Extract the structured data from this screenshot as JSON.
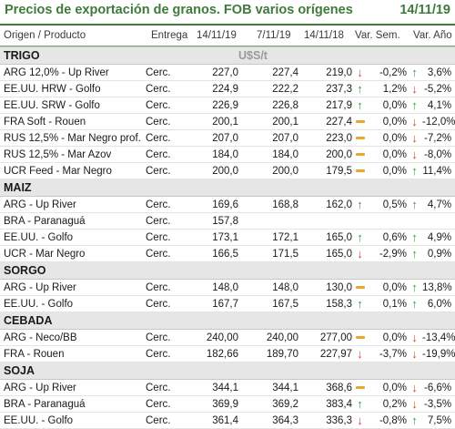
{
  "header": {
    "title": "Precios de exportación de granos. FOB varios orígenes",
    "date": "14/11/19"
  },
  "columns": {
    "origin": "Origen / Producto",
    "delivery": "Entrega",
    "d1": "14/11/19",
    "d2": "7/11/19",
    "d3": "14/11/18",
    "week": "Var. Sem.",
    "year": "Var. Año"
  },
  "unit": "U$S/t",
  "colors": {
    "accent": "#3f7a3c",
    "up": "#3aa035",
    "down": "#e0412f",
    "flat": "#f0a531"
  },
  "sections": [
    {
      "name": "TRIGO",
      "rows": [
        {
          "origin": "ARG 12,0% - Up River",
          "delivery": "Cerc.",
          "d1": "227,0",
          "d2": "227,4",
          "d3": "219,0",
          "ind1": "down",
          "week": "-0,2%",
          "ind2": "up",
          "year": "3,6%"
        },
        {
          "origin": "EE.UU. HRW - Golfo",
          "delivery": "Cerc.",
          "d1": "224,9",
          "d2": "222,2",
          "d3": "237,3",
          "ind1": "up",
          "week": "1,2%",
          "ind2": "down",
          "year": "-5,2%"
        },
        {
          "origin": "EE.UU. SRW - Golfo",
          "delivery": "Cerc.",
          "d1": "226,9",
          "d2": "226,8",
          "d3": "217,9",
          "ind1": "up",
          "week": "0,0%",
          "ind2": "up",
          "year": "4,1%"
        },
        {
          "origin": "FRA Soft - Rouen",
          "delivery": "Cerc.",
          "d1": "200,1",
          "d2": "200,1",
          "d3": "227,4",
          "ind1": "flat",
          "week": "0,0%",
          "ind2": "down",
          "year": "-12,0%"
        },
        {
          "origin": "RUS 12,5% - Mar Negro prof.",
          "delivery": "Cerc.",
          "d1": "207,0",
          "d2": "207,0",
          "d3": "223,0",
          "ind1": "flat",
          "week": "0,0%",
          "ind2": "down",
          "year": "-7,2%"
        },
        {
          "origin": "RUS 12,5% - Mar Azov",
          "delivery": "Cerc.",
          "d1": "184,0",
          "d2": "184,0",
          "d3": "200,0",
          "ind1": "flat",
          "week": "0,0%",
          "ind2": "down",
          "year": "-8,0%"
        },
        {
          "origin": "UCR Feed - Mar Negro",
          "delivery": "Cerc.",
          "d1": "200,0",
          "d2": "200,0",
          "d3": "179,5",
          "ind1": "flat",
          "week": "0,0%",
          "ind2": "up",
          "year": "11,4%"
        }
      ]
    },
    {
      "name": "MAIZ",
      "rows": [
        {
          "origin": "ARG - Up River",
          "delivery": "Cerc.",
          "d1": "169,6",
          "d2": "168,8",
          "d3": "162,0",
          "ind1": "up",
          "week": "0,5%",
          "ind2": "up",
          "year": "4,7%"
        },
        {
          "origin": "BRA - Paranaguá",
          "delivery": "Cerc.",
          "d1": "157,8",
          "d2": "",
          "d3": "",
          "ind1": "",
          "week": "",
          "ind2": "",
          "year": ""
        },
        {
          "origin": "EE.UU. - Golfo",
          "delivery": "Cerc.",
          "d1": "173,1",
          "d2": "172,1",
          "d3": "165,0",
          "ind1": "up",
          "week": "0,6%",
          "ind2": "up",
          "year": "4,9%"
        },
        {
          "origin": "UCR - Mar Negro",
          "delivery": "Cerc.",
          "d1": "166,5",
          "d2": "171,5",
          "d3": "165,0",
          "ind1": "down",
          "week": "-2,9%",
          "ind2": "up",
          "year": "0,9%"
        }
      ]
    },
    {
      "name": "SORGO",
      "rows": [
        {
          "origin": "ARG - Up River",
          "delivery": "Cerc.",
          "d1": "148,0",
          "d2": "148,0",
          "d3": "130,0",
          "ind1": "flat",
          "week": "0,0%",
          "ind2": "up",
          "year": "13,8%"
        },
        {
          "origin": "EE.UU. - Golfo",
          "delivery": "Cerc.",
          "d1": "167,7",
          "d2": "167,5",
          "d3": "158,3",
          "ind1": "up",
          "week": "0,1%",
          "ind2": "up",
          "year": "6,0%"
        }
      ]
    },
    {
      "name": "CEBADA",
      "rows": [
        {
          "origin": "ARG - Neco/BB",
          "delivery": "Cerc.",
          "d1": "240,00",
          "d2": "240,00",
          "d3": "277,00",
          "ind1": "flat",
          "week": "0,0%",
          "ind2": "down",
          "year": "-13,4%"
        },
        {
          "origin": "FRA - Rouen",
          "delivery": "Cerc.",
          "d1": "182,66",
          "d2": "189,70",
          "d3": "227,97",
          "ind1": "down",
          "week": "-3,7%",
          "ind2": "down",
          "year": "-19,9%"
        }
      ]
    },
    {
      "name": "SOJA",
      "rows": [
        {
          "origin": "ARG - Up River",
          "delivery": "Cerc.",
          "d1": "344,1",
          "d2": "344,1",
          "d3": "368,6",
          "ind1": "flat",
          "week": "0,0%",
          "ind2": "down",
          "year": "-6,6%"
        },
        {
          "origin": "BRA - Paranaguá",
          "delivery": "Cerc.",
          "d1": "369,9",
          "d2": "369,2",
          "d3": "383,4",
          "ind1": "up",
          "week": "0,2%",
          "ind2": "down",
          "year": "-3,5%"
        },
        {
          "origin": "EE.UU. - Golfo",
          "delivery": "Cerc.",
          "d1": "361,4",
          "d2": "364,3",
          "d3": "336,3",
          "ind1": "down",
          "week": "-0,8%",
          "ind2": "up",
          "year": "7,5%"
        }
      ]
    }
  ]
}
